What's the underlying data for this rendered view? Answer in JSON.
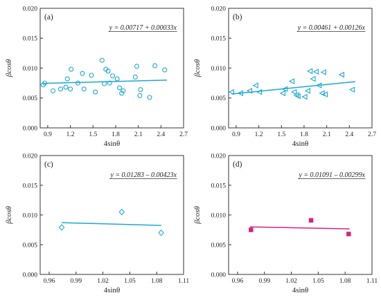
{
  "chart_data": [
    {
      "panel": "(a)",
      "type": "scatter",
      "xlabel": "4sinθ",
      "ylabel": "βcosθ",
      "xlim": [
        0.8,
        2.7
      ],
      "ylim": [
        0,
        0.02
      ],
      "xticks": [
        "0.9",
        "1.2",
        "1.5",
        "1.8",
        "2.1",
        "2.4",
        "2.7"
      ],
      "xtick_values": [
        0.9,
        1.2,
        1.5,
        1.8,
        2.1,
        2.4,
        2.7
      ],
      "yticks": [
        "0.000",
        "0.005",
        "0.010",
        "0.015",
        "0.020"
      ],
      "ytick_values": [
        0,
        0.005,
        0.01,
        0.015,
        0.02
      ],
      "marker": "circle",
      "color": "#1aa7d8",
      "equation": "y = 0.00717 + 0.00033x",
      "fit": {
        "intercept": 0.00717,
        "slope": 0.00033,
        "x_range": [
          0.84,
          2.48
        ]
      },
      "x": [
        0.84,
        0.86,
        0.97,
        1.07,
        1.14,
        1.16,
        1.2,
        1.21,
        1.3,
        1.36,
        1.38,
        1.48,
        1.53,
        1.62,
        1.65,
        1.67,
        1.7,
        1.72,
        1.76,
        1.82,
        1.85,
        1.88,
        1.9,
        2.06,
        2.08,
        2.12,
        2.13,
        2.25,
        2.32,
        2.45
      ],
      "y": [
        0.0072,
        0.0075,
        0.0062,
        0.0065,
        0.0068,
        0.0082,
        0.0065,
        0.0098,
        0.0075,
        0.0091,
        0.0065,
        0.0088,
        0.006,
        0.0113,
        0.0074,
        0.0098,
        0.0095,
        0.0075,
        0.0087,
        0.0082,
        0.0067,
        0.0058,
        0.0062,
        0.0085,
        0.0103,
        0.0054,
        0.0064,
        0.0051,
        0.0104,
        0.0097
      ]
    },
    {
      "panel": "(b)",
      "type": "scatter",
      "xlabel": "4sinθ",
      "ylabel": "βcosθ",
      "xlim": [
        0.8,
        2.7
      ],
      "ylim": [
        0,
        0.02
      ],
      "xticks": [
        "0.9",
        "1.2",
        "1.5",
        "1.8",
        "2.1",
        "2.4",
        "2.7"
      ],
      "xtick_values": [
        0.9,
        1.2,
        1.5,
        1.8,
        2.1,
        2.4,
        2.7
      ],
      "yticks": [
        "0.000",
        "0.005",
        "0.010",
        "0.015",
        "0.020"
      ],
      "ytick_values": [
        0,
        0.005,
        0.01,
        0.015,
        0.02
      ],
      "marker": "triangle-left",
      "color": "#1aa7d8",
      "equation": "y = 0.00461 + 0.00126x",
      "fit": {
        "intercept": 0.00461,
        "slope": 0.00126,
        "x_range": [
          0.84,
          2.48
        ]
      },
      "x": [
        0.84,
        0.96,
        1.08,
        1.16,
        1.21,
        1.52,
        1.55,
        1.64,
        1.67,
        1.7,
        1.72,
        1.81,
        1.85,
        1.88,
        1.92,
        1.96,
        2.0,
        2.04,
        2.06,
        2.08,
        2.3,
        2.44
      ],
      "y": [
        0.006,
        0.0058,
        0.0062,
        0.0071,
        0.006,
        0.0058,
        0.0065,
        0.0078,
        0.006,
        0.0055,
        0.0053,
        0.0052,
        0.0062,
        0.0095,
        0.0082,
        0.0094,
        0.0071,
        0.0058,
        0.0093,
        0.0056,
        0.0089,
        0.0064
      ]
    },
    {
      "panel": "(c)",
      "type": "scatter",
      "xlabel": "4sinθ",
      "ylabel": "βcosθ",
      "xlim": [
        0.95,
        1.11
      ],
      "ylim": [
        0,
        0.02
      ],
      "xticks": [
        "0.96",
        "0.99",
        "1.02",
        "1.05",
        "1.08",
        "1.11"
      ],
      "xtick_values": [
        0.96,
        0.99,
        1.02,
        1.05,
        1.08,
        1.11
      ],
      "yticks": [
        "0.000",
        "0.005",
        "0.010",
        "0.015",
        "0.020"
      ],
      "ytick_values": [
        0,
        0.005,
        0.01,
        0.015,
        0.02
      ],
      "marker": "diamond",
      "color": "#1aa7d8",
      "equation": "y = 0.01283 – 0.00423x",
      "fit": {
        "intercept": 0.01283,
        "slope": -0.00423,
        "x_range": [
          0.974,
          1.085
        ]
      },
      "x": [
        0.974,
        1.041,
        1.085
      ],
      "y": [
        0.0079,
        0.0105,
        0.007
      ]
    },
    {
      "panel": "(d)",
      "type": "scatter",
      "xlabel": "4sinθ",
      "ylabel": "βcosθ",
      "xlim": [
        0.95,
        1.11
      ],
      "ylim": [
        0,
        0.02
      ],
      "xticks": [
        "0.96",
        "0.99",
        "1.02",
        "1.05",
        "1.08",
        "1.11"
      ],
      "xtick_values": [
        0.96,
        0.99,
        1.02,
        1.05,
        1.08,
        1.11
      ],
      "yticks": [
        "0.000",
        "0.005",
        "0.010",
        "0.015",
        "0.020"
      ],
      "ytick_values": [
        0,
        0.005,
        0.01,
        0.015,
        0.02
      ],
      "marker": "square-filled",
      "color": "#d4237f",
      "equation": "y = 0.01091 – 0.00299x",
      "fit": {
        "intercept": 0.01091,
        "slope": -0.00299,
        "x_range": [
          0.974,
          1.085
        ]
      },
      "x": [
        0.975,
        1.042,
        1.084
      ],
      "y": [
        0.0075,
        0.0091,
        0.0068
      ]
    }
  ]
}
